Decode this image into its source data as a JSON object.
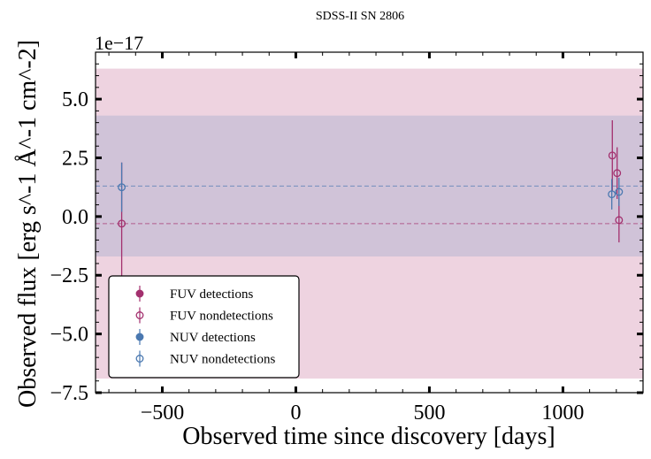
{
  "chart_data": {
    "type": "scatter",
    "title": "SDSS-II SN 2806",
    "xlabel": "Observed time since discovery [days]",
    "ylabel": "Observed flux [erg s^-1 Å^-1 cm^-2]",
    "offset_label": "1e−17",
    "xlim": [
      -750,
      1300
    ],
    "ylim": [
      -7.5,
      7.0
    ],
    "x_ticks": [
      -500,
      0,
      500,
      1000
    ],
    "x_tick_labels": [
      "−500",
      "0",
      "500",
      "1000"
    ],
    "y_ticks": [
      -7.5,
      -5.0,
      -2.5,
      0.0,
      2.5,
      5.0
    ],
    "y_tick_labels": [
      "−7.5",
      "−5.0",
      "−2.5",
      "0.0",
      "2.5",
      "5.0"
    ],
    "grid": false,
    "legend_position": "lower-left",
    "bands": [
      {
        "series": "FUV",
        "mean": -0.3,
        "low": -6.9,
        "high": 6.3,
        "color": "#e8c4d6"
      },
      {
        "series": "NUV",
        "mean": 1.3,
        "low": -1.7,
        "high": 4.3,
        "color": "#c5bdd6"
      }
    ],
    "series": [
      {
        "name": "FUV detections",
        "color": "#a3306e",
        "marker": "filled",
        "points": []
      },
      {
        "name": "FUV nondetections",
        "color": "#a3306e",
        "marker": "open",
        "points": [
          {
            "x": -652,
            "y": -0.3,
            "err": 2.6
          },
          {
            "x": 1185,
            "y": 2.6,
            "err": 1.5
          },
          {
            "x": 1203,
            "y": 1.85,
            "err": 1.1
          },
          {
            "x": 1210,
            "y": -0.15,
            "err": 0.95
          }
        ]
      },
      {
        "name": "NUV detections",
        "color": "#4a78b0",
        "marker": "filled",
        "points": []
      },
      {
        "name": "NUV nondetections",
        "color": "#4a78b0",
        "marker": "open",
        "points": [
          {
            "x": -652,
            "y": 1.25,
            "err": 1.05
          },
          {
            "x": 1183,
            "y": 0.95,
            "err": 0.65
          },
          {
            "x": 1210,
            "y": 1.05,
            "err": 0.6
          }
        ]
      }
    ]
  }
}
